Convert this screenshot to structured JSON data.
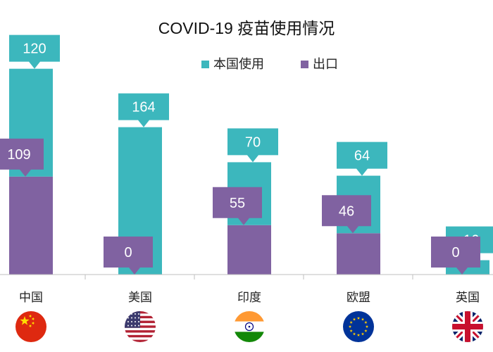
{
  "chart_data": {
    "type": "bar",
    "title": "COVID-19 疫苗使用情况",
    "categories": [
      "中国",
      "美国",
      "印度",
      "欧盟",
      "英国"
    ],
    "series": [
      {
        "name": "出口",
        "values": [
          109,
          0,
          55,
          46,
          0
        ]
      },
      {
        "name": "本国使用",
        "values": [
          120,
          164,
          70,
          64,
          16
        ]
      }
    ],
    "stacked": true,
    "ylim": [
      0,
      235
    ],
    "grid": false,
    "legend_position": "top",
    "flags": [
      "china-flag",
      "us-flag",
      "india-flag",
      "eu-flag",
      "uk-flag"
    ]
  },
  "colors": {
    "domestic": "#3cb7bd",
    "export": "#8062a1",
    "axis": "#bfbfbf",
    "text": "#222222"
  }
}
